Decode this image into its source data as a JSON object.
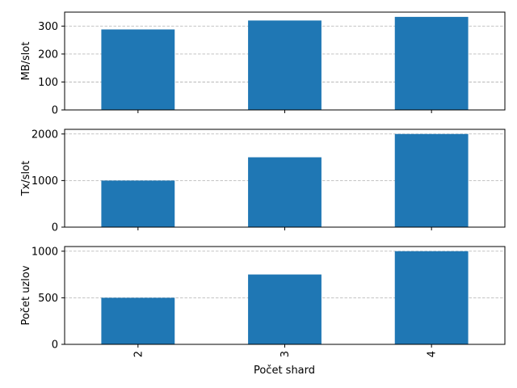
{
  "chart_data": {
    "type": "bar",
    "layout": "stacked-subplots-shared-x",
    "categories": [
      "2",
      "3",
      "4"
    ],
    "xlabel": "Počet shard",
    "bar_color": "#1f77b4",
    "grid": "y-dashed",
    "subplots": [
      {
        "ylabel": "MB/slot",
        "values": [
          288,
          320,
          333
        ],
        "ylim": [
          0,
          350
        ],
        "yticks": [
          0,
          100,
          200,
          300
        ]
      },
      {
        "ylabel": "Tx/slot",
        "values": [
          1000,
          1500,
          2000
        ],
        "ylim": [
          0,
          2100
        ],
        "yticks": [
          0,
          1000,
          2000
        ]
      },
      {
        "ylabel": "Počet uzlov",
        "values": [
          500,
          750,
          1000
        ],
        "ylim": [
          0,
          1050
        ],
        "yticks": [
          0,
          500,
          1000
        ]
      }
    ]
  }
}
